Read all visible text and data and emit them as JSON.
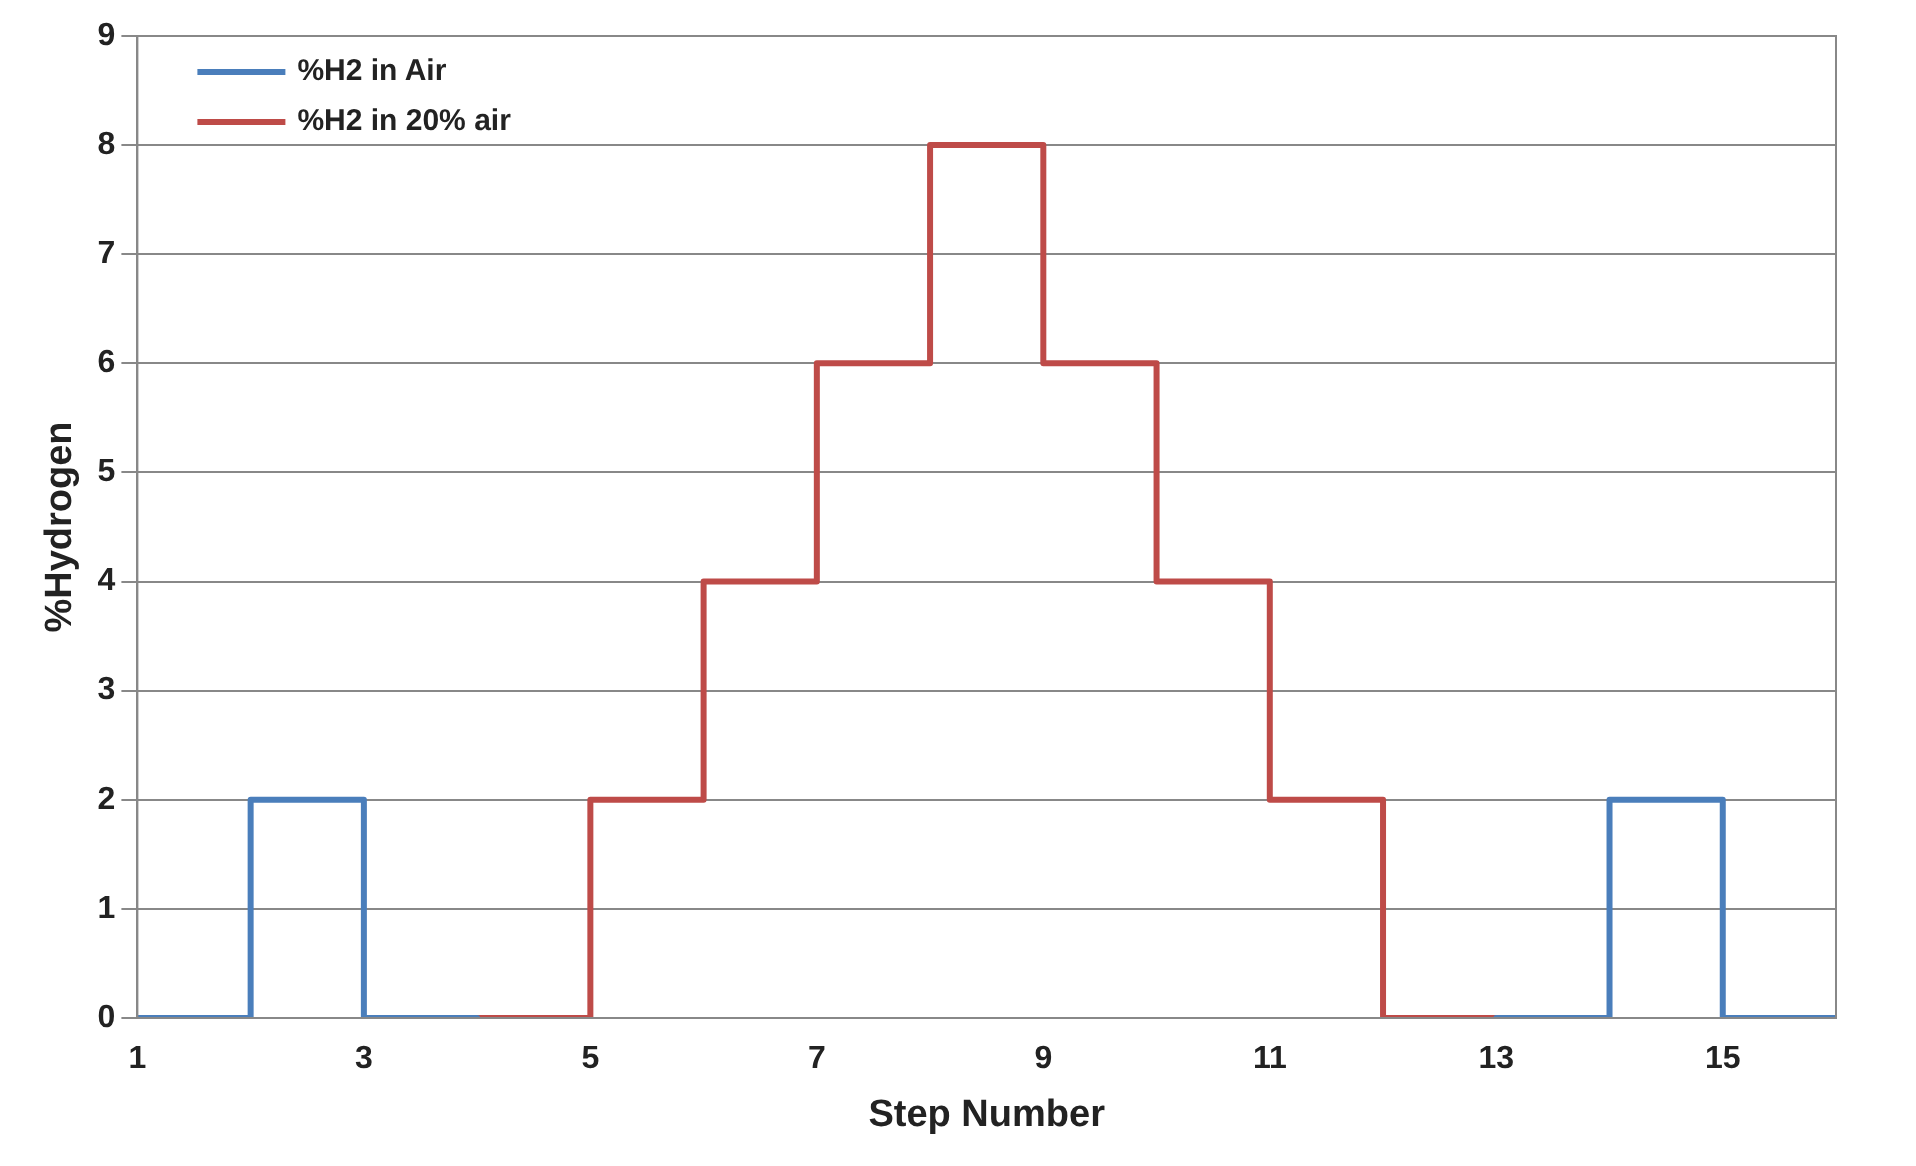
{
  "chart_data": {
    "type": "step",
    "xlabel": "Step Number",
    "ylabel": "%Hydrogen",
    "xlim": [
      1,
      16
    ],
    "xticks": [
      1,
      3,
      5,
      7,
      9,
      11,
      13,
      15
    ],
    "ylim": [
      0,
      9
    ],
    "yticks": [
      0,
      1,
      2,
      3,
      4,
      5,
      6,
      7,
      8,
      9
    ],
    "grid": "y",
    "legend": "top left",
    "line_style": "solid",
    "marker": "none",
    "series": [
      {
        "name": "%H2 in Air",
        "color": "#4a7ebb",
        "x": [
          1,
          2,
          3,
          4,
          12,
          13,
          14,
          15,
          16
        ],
        "values": [
          0,
          2,
          0,
          0,
          null,
          0,
          2,
          0,
          0
        ]
      },
      {
        "name": "%H2 in 20% air",
        "color": "#be4b48",
        "x": [
          4,
          5,
          6,
          7,
          8,
          9,
          10,
          11,
          12,
          13
        ],
        "values": [
          0,
          2,
          4,
          6,
          8,
          6,
          4,
          2,
          0,
          0
        ]
      }
    ]
  }
}
